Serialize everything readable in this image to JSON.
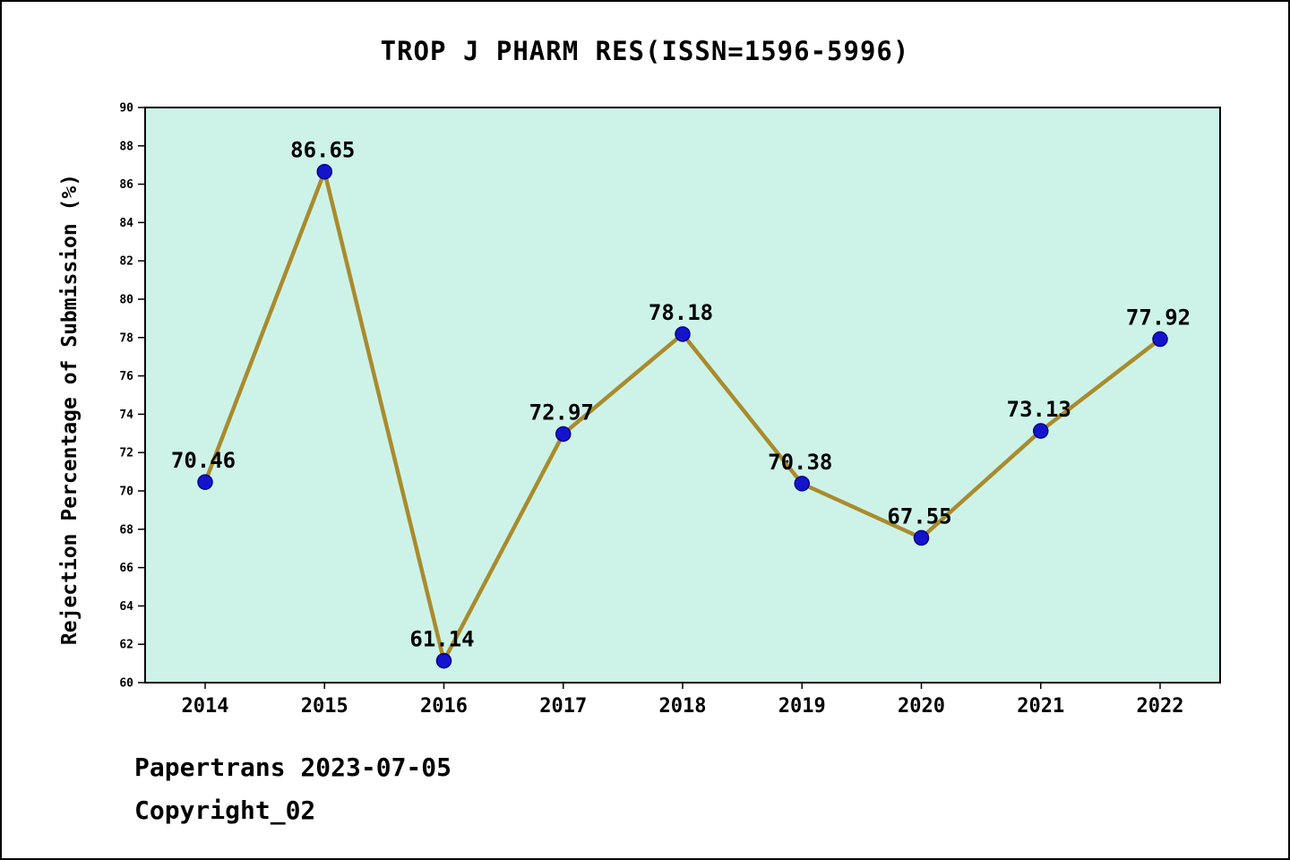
{
  "title": "TROP J PHARM RES(ISSN=1596-5996)",
  "footer": {
    "line1": "Papertrans 2023-07-05",
    "line2": "Copyright_02"
  },
  "chart_data": {
    "type": "line",
    "title": "TROP J PHARM RES(ISSN=1596-5996)",
    "categories": [
      "2014",
      "2015",
      "2016",
      "2017",
      "2018",
      "2019",
      "2020",
      "2021",
      "2022"
    ],
    "values": [
      70.46,
      86.65,
      61.14,
      72.97,
      78.18,
      70.38,
      67.55,
      73.13,
      77.92
    ],
    "point_labels": [
      "70.46",
      "86.65",
      "61.14",
      "72.97",
      "78.18",
      "70.38",
      "67.55",
      "73.13",
      "77.92"
    ],
    "xlabel": "",
    "ylabel": "Rejection Percentage of Submission (%)",
    "ylim": [
      60,
      90
    ],
    "ytick_step": 2,
    "yticks": [
      60,
      62,
      64,
      66,
      68,
      70,
      72,
      74,
      76,
      78,
      80,
      82,
      84,
      86,
      88,
      90
    ],
    "grid": false,
    "legend": "none",
    "colors": {
      "line": "#a98b2d",
      "marker_fill": "#1414cd",
      "marker_edge": "#00008b",
      "plot_bg": "#cdf3e8",
      "axis": "#000000",
      "text": "#000000"
    }
  }
}
